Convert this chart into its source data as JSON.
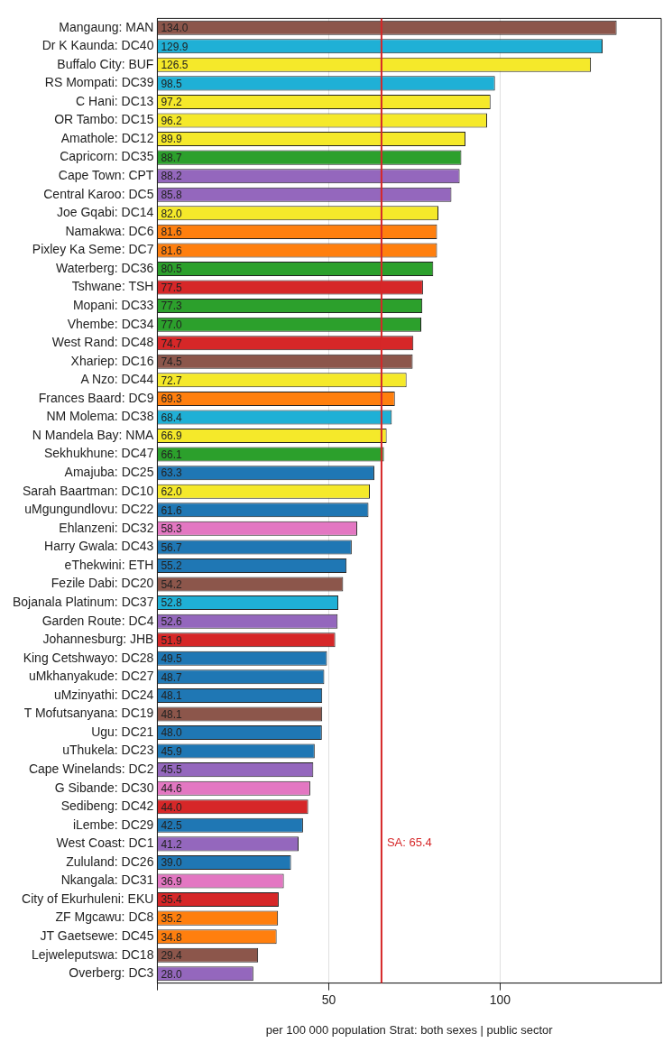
{
  "chart_data": {
    "type": "bar",
    "orientation": "horizontal",
    "xlabel": "per 100 000 population Strat: both sexes | public sector",
    "categories": [
      "Mangaung: MAN",
      "Dr K Kaunda: DC40",
      "Buffalo City: BUF",
      "RS Mompati: DC39",
      "C Hani: DC13",
      "OR Tambo: DC15",
      "Amathole: DC12",
      "Capricorn: DC35",
      "Cape Town: CPT",
      "Central Karoo: DC5",
      "Joe Gqabi: DC14",
      "Namakwa: DC6",
      "Pixley Ka Seme: DC7",
      "Waterberg: DC36",
      "Tshwane: TSH",
      "Mopani: DC33",
      "Vhembe: DC34",
      "West Rand: DC48",
      "Xhariep: DC16",
      "A Nzo: DC44",
      "Frances Baard: DC9",
      "NM Molema: DC38",
      "N Mandela Bay: NMA",
      "Sekhukhune: DC47",
      "Amajuba: DC25",
      "Sarah Baartman: DC10",
      "uMgungundlovu: DC22",
      "Ehlanzeni: DC32",
      "Harry Gwala: DC43",
      "eThekwini: ETH",
      "Fezile Dabi: DC20",
      "Bojanala Platinum: DC37",
      "Garden Route: DC4",
      "Johannesburg: JHB",
      "King Cetshwayo: DC28",
      "uMkhanyakude: DC27",
      "uMzinyathi: DC24",
      "T Mofutsanyana: DC19",
      "Ugu: DC21",
      "uThukela: DC23",
      "Cape Winelands: DC2",
      "G Sibande: DC30",
      "Sedibeng: DC42",
      "iLembe: DC29",
      "West Coast: DC1",
      "Zululand: DC26",
      "Nkangala: DC31",
      "City of Ekurhuleni: EKU",
      "ZF Mgcawu: DC8",
      "JT Gaetsewe: DC45",
      "Lejweleputswa: DC18",
      "Overberg: DC3"
    ],
    "values": [
      134.0,
      129.9,
      126.5,
      98.5,
      97.2,
      96.2,
      89.9,
      88.7,
      88.2,
      85.8,
      82.0,
      81.6,
      81.6,
      80.5,
      77.5,
      77.3,
      77.0,
      74.7,
      74.5,
      72.7,
      69.3,
      68.4,
      66.9,
      66.1,
      63.3,
      62.0,
      61.6,
      58.3,
      56.7,
      55.2,
      54.2,
      52.8,
      52.6,
      51.9,
      49.5,
      48.7,
      48.1,
      48.1,
      48.0,
      45.9,
      45.5,
      44.6,
      44.0,
      42.5,
      41.2,
      39.0,
      36.9,
      35.4,
      35.2,
      34.8,
      29.4,
      28.0
    ],
    "colors": [
      "#8c564b",
      "#1fb0d6",
      "#f5e92a",
      "#1fb0d6",
      "#f5e92a",
      "#f5e92a",
      "#f5e92a",
      "#2ca02c",
      "#9467bd",
      "#9467bd",
      "#f5e92a",
      "#ff7f0e",
      "#ff7f0e",
      "#2ca02c",
      "#d62728",
      "#2ca02c",
      "#2ca02c",
      "#d62728",
      "#8c564b",
      "#f5e92a",
      "#ff7f0e",
      "#1fb0d6",
      "#f5e92a",
      "#2ca02c",
      "#1f77b4",
      "#f5e92a",
      "#1f77b4",
      "#e377c2",
      "#1f77b4",
      "#1f77b4",
      "#8c564b",
      "#1fb0d6",
      "#9467bd",
      "#d62728",
      "#1f77b4",
      "#1f77b4",
      "#1f77b4",
      "#8c564b",
      "#1f77b4",
      "#1f77b4",
      "#9467bd",
      "#e377c2",
      "#d62728",
      "#1f77b4",
      "#9467bd",
      "#1f77b4",
      "#e377c2",
      "#d62728",
      "#ff7f0e",
      "#ff7f0e",
      "#8c564b",
      "#9467bd"
    ],
    "xlim": [
      0,
      147
    ],
    "xticks": [
      {
        "value": 0,
        "label": null
      },
      50,
      100
    ],
    "value_labels": [
      "134.0",
      "129.9",
      "126.5",
      "98.5",
      "97.2",
      "96.2",
      "89.9",
      "88.7",
      "88.2",
      "85.8",
      "82.0",
      "81.6",
      "81.6",
      "80.5",
      "77.5",
      "77.3",
      "77.0",
      "74.7",
      "74.5",
      "72.7",
      "69.3",
      "68.4",
      "66.9",
      "66.1",
      "63.3",
      "62.0",
      "61.6",
      "58.3",
      "56.7",
      "55.2",
      "54.2",
      "52.8",
      "52.6",
      "51.9",
      "49.5",
      "48.7",
      "48.1",
      "48.1",
      "48.0",
      "45.9",
      "45.5",
      "44.6",
      "44.0",
      "42.5",
      "41.2",
      "39.0",
      "36.9",
      "35.4",
      "35.2",
      "34.8",
      "29.4",
      "28.0"
    ],
    "grid": "x",
    "ref_lines": [
      {
        "axis": "x",
        "value": 65.4,
        "label": "SA: 65.4",
        "color": "#d62728"
      }
    ]
  }
}
